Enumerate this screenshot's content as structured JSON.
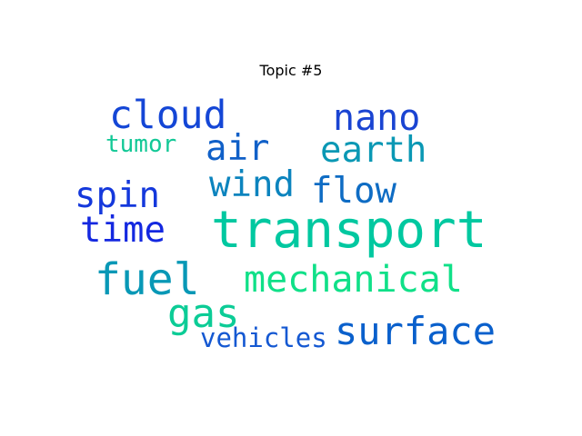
{
  "title": "Topic #5",
  "words": [
    {
      "text": "transport",
      "color": "#00c8a0"
    },
    {
      "text": "cloud",
      "color": "#1446d6"
    },
    {
      "text": "nano",
      "color": "#1a44d2"
    },
    {
      "text": "air",
      "color": "#1060c8"
    },
    {
      "text": "earth",
      "color": "#0a98b4"
    },
    {
      "text": "tumor",
      "color": "#12c896"
    },
    {
      "text": "wind",
      "color": "#0c84be"
    },
    {
      "text": "flow",
      "color": "#0e6cc4"
    },
    {
      "text": "spin",
      "color": "#1438dc"
    },
    {
      "text": "time",
      "color": "#1428e0"
    },
    {
      "text": "fuel",
      "color": "#0898b6"
    },
    {
      "text": "mechanical",
      "color": "#10e088"
    },
    {
      "text": "gas",
      "color": "#0ccc96"
    },
    {
      "text": "surface",
      "color": "#0a60cc"
    },
    {
      "text": "vehicles",
      "color": "#1458d2"
    }
  ]
}
